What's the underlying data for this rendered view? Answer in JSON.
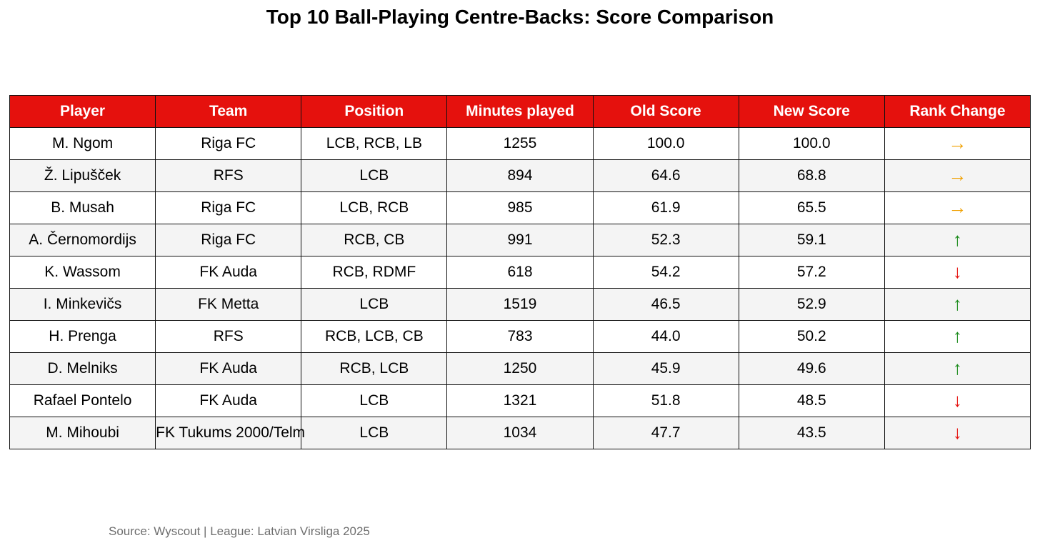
{
  "chart_data": {
    "type": "table",
    "title": "Top 10 Ball-Playing Centre-Backs: Score Comparison",
    "columns": [
      "Player",
      "Team",
      "Position",
      "Minutes played",
      "Old Score",
      "New Score",
      "Rank Change"
    ],
    "rows": [
      {
        "player": "M. Ngom",
        "team": "Riga FC",
        "position": "LCB, RCB, LB",
        "minutes": "1255",
        "old_score": "100.0",
        "new_score": "100.0",
        "rank_change": "→",
        "rank_change_color": "#f0a000"
      },
      {
        "player": "Ž. Lipušček",
        "team": "RFS",
        "position": "LCB",
        "minutes": "894",
        "old_score": "64.6",
        "new_score": "68.8",
        "rank_change": "→",
        "rank_change_color": "#f0a000"
      },
      {
        "player": "B. Musah",
        "team": "Riga FC",
        "position": "LCB, RCB",
        "minutes": "985",
        "old_score": "61.9",
        "new_score": "65.5",
        "rank_change": "→",
        "rank_change_color": "#f0a000"
      },
      {
        "player": "A. Černomordijs",
        "team": "Riga FC",
        "position": "RCB, CB",
        "minutes": "991",
        "old_score": "52.3",
        "new_score": "59.1",
        "rank_change": "↑",
        "rank_change_color": "#1a8a1a"
      },
      {
        "player": "K. Wassom",
        "team": "FK Auda",
        "position": "RCB, RDMF",
        "minutes": "618",
        "old_score": "54.2",
        "new_score": "57.2",
        "rank_change": "↓",
        "rank_change_color": "#e5110d"
      },
      {
        "player": "I. Minkevičs",
        "team": "FK Metta",
        "position": "LCB",
        "minutes": "1519",
        "old_score": "46.5",
        "new_score": "52.9",
        "rank_change": "↑",
        "rank_change_color": "#1a8a1a"
      },
      {
        "player": "H. Prenga",
        "team": "RFS",
        "position": "RCB, LCB, CB",
        "minutes": "783",
        "old_score": "44.0",
        "new_score": "50.2",
        "rank_change": "↑",
        "rank_change_color": "#1a8a1a"
      },
      {
        "player": "D. Melniks",
        "team": "FK Auda",
        "position": "RCB, LCB",
        "minutes": "1250",
        "old_score": "45.9",
        "new_score": "49.6",
        "rank_change": "↑",
        "rank_change_color": "#1a8a1a"
      },
      {
        "player": "Rafael Pontelo",
        "team": "FK Auda",
        "position": "LCB",
        "minutes": "1321",
        "old_score": "51.8",
        "new_score": "48.5",
        "rank_change": "↓",
        "rank_change_color": "#e5110d"
      },
      {
        "player": "M. Mihoubi",
        "team": "FK Tukums 2000/Telm",
        "position": "LCB",
        "minutes": "1034",
        "old_score": "47.7",
        "new_score": "43.5",
        "rank_change": "↓",
        "rank_change_color": "#e5110d"
      }
    ],
    "header_color": "#e5110d",
    "header_text_color": "#ffffff",
    "source": "Source: Wyscout | League: Latvian Virsliga 2025"
  }
}
